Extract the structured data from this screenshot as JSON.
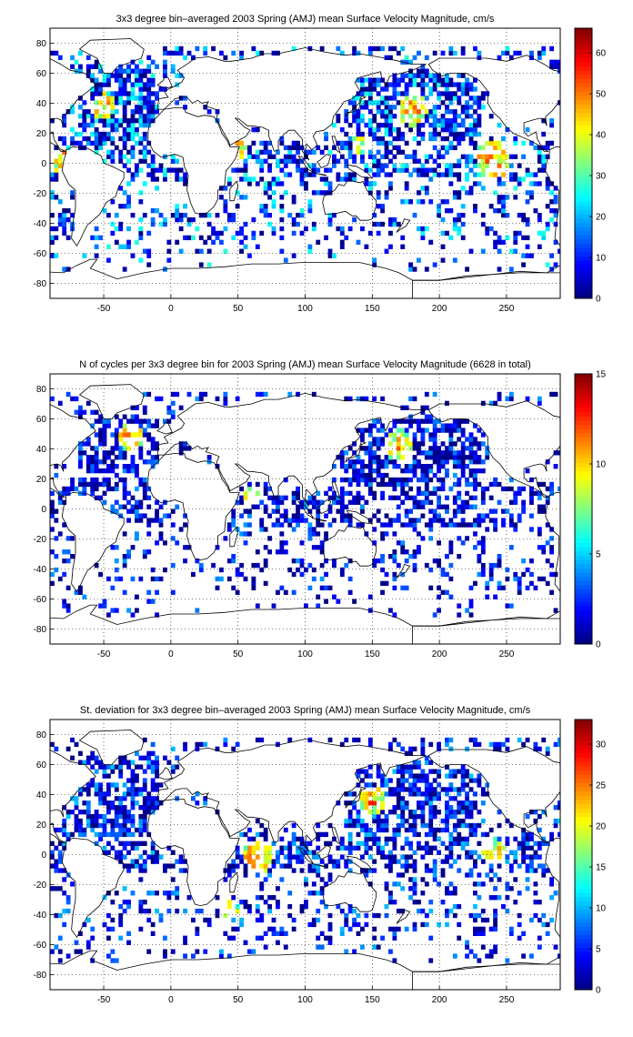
{
  "chart_data": [
    {
      "type": "heatmap",
      "title": "3x3 degree bin–averaged 2003 Spring (AMJ) mean Surface Velocity Magnitude, cm/s",
      "xlabel": "",
      "ylabel": "",
      "xlim": [
        -90,
        290
      ],
      "ylim": [
        -90,
        90
      ],
      "x_ticks": [
        "-50",
        "0",
        "50",
        "100",
        "150",
        "200",
        "250"
      ],
      "y_ticks": [
        "80",
        "60",
        "40",
        "20",
        "0",
        "-20",
        "-40",
        "-60",
        "-80"
      ],
      "grid": true,
      "colorbar": {
        "min": 0,
        "max": 66,
        "ticks": [
          "60",
          "50",
          "40",
          "30",
          "20",
          "10",
          "0"
        ],
        "colormap": "jet"
      },
      "bin_size_deg": 3,
      "seed": 11,
      "density": 0.62,
      "value_scale": 0.42,
      "hotspots": [
        {
          "lon": -80,
          "lat": 2,
          "radius": 4,
          "value": 62
        },
        {
          "lon": -50,
          "lat": 38,
          "radius": 4,
          "value": 58
        },
        {
          "lon": 180,
          "lat": 36,
          "radius": 5,
          "value": 60
        },
        {
          "lon": 240,
          "lat": 3,
          "radius": 6,
          "value": 62
        },
        {
          "lon": 50,
          "lat": 10,
          "radius": 3,
          "value": 56
        },
        {
          "lon": 140,
          "lat": 12,
          "radius": 3,
          "value": 54
        }
      ]
    },
    {
      "type": "heatmap",
      "title": "N of cycles per 3x3 degree bin for 2003 Spring (AMJ) mean Surface Velocity Magnitude (6628 in total)",
      "xlabel": "",
      "ylabel": "",
      "xlim": [
        -90,
        290
      ],
      "ylim": [
        -90,
        90
      ],
      "x_ticks": [
        "-50",
        "0",
        "50",
        "100",
        "150",
        "200",
        "250"
      ],
      "y_ticks": [
        "80",
        "60",
        "40",
        "20",
        "0",
        "-20",
        "-40",
        "-60",
        "-80"
      ],
      "grid": true,
      "colorbar": {
        "min": 0,
        "max": 15,
        "ticks": [
          "15",
          "10",
          "5",
          "0"
        ],
        "colormap": "jet"
      },
      "bin_size_deg": 3,
      "seed": 23,
      "density": 0.55,
      "value_scale": 0.28,
      "hotspots": [
        {
          "lon": -30,
          "lat": 48,
          "radius": 4,
          "value": 14
        },
        {
          "lon": 170,
          "lat": 42,
          "radius": 5,
          "value": 13
        },
        {
          "lon": 60,
          "lat": 10,
          "radius": 3,
          "value": 13
        }
      ]
    },
    {
      "type": "heatmap",
      "title": "St. deviation for 3x3 degree bin–averaged 2003 Spring (AMJ) mean Surface Velocity Magnitude, cm/s",
      "xlabel": "",
      "ylabel": "",
      "xlim": [
        -90,
        290
      ],
      "ylim": [
        -90,
        90
      ],
      "x_ticks": [
        "-50",
        "0",
        "50",
        "100",
        "150",
        "200",
        "250"
      ],
      "y_ticks": [
        "80",
        "60",
        "40",
        "20",
        "0",
        "-20",
        "-40",
        "-60",
        "-80"
      ],
      "grid": true,
      "colorbar": {
        "min": 0,
        "max": 33,
        "ticks": [
          "30",
          "25",
          "20",
          "15",
          "10",
          "5",
          "0"
        ],
        "colormap": "jet"
      },
      "bin_size_deg": 3,
      "seed": 37,
      "density": 0.6,
      "value_scale": 0.32,
      "hotspots": [
        {
          "lon": 65,
          "lat": -1,
          "radius": 5,
          "value": 32
        },
        {
          "lon": 150,
          "lat": 36,
          "radius": 4,
          "value": 30
        },
        {
          "lon": 240,
          "lat": 2,
          "radius": 4,
          "value": 28
        },
        {
          "lon": 45,
          "lat": -36,
          "radius": 3,
          "value": 26
        }
      ]
    }
  ]
}
